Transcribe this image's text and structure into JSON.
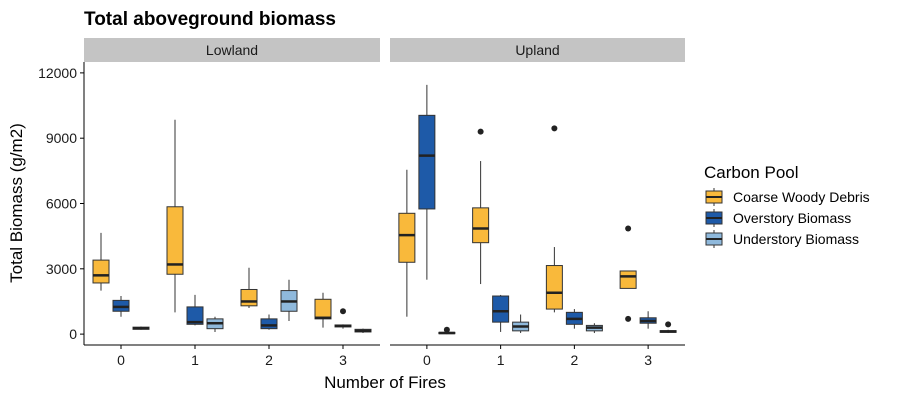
{
  "chart_data": {
    "type": "boxplot",
    "title": "Total aboveground biomass",
    "xlabel": "Number of Fires",
    "ylabel": "Total Biomass (g/m2)",
    "ylim": [
      -500,
      12500
    ],
    "yticks": [
      0,
      3000,
      6000,
      9000,
      12000
    ],
    "ytick_labels": [
      "0",
      "3000",
      "6000",
      "9000",
      "12000"
    ],
    "categories": [
      "0",
      "1",
      "2",
      "3"
    ],
    "grid": false,
    "legend": {
      "title": "Carbon Pool",
      "placement": "right",
      "entries": [
        {
          "name": "Coarse Woody Debris",
          "color": "#f9b93b"
        },
        {
          "name": "Overstory Biomass",
          "color": "#1e5aa8"
        },
        {
          "name": "Understory Biomass",
          "color": "#8fb9dc"
        }
      ]
    },
    "panels": [
      {
        "label": "Lowland",
        "groups": [
          {
            "category": "0",
            "boxes": [
              {
                "series": "Coarse Woody Debris",
                "min": 2000,
                "q1": 2350,
                "median": 2700,
                "q3": 3400,
                "max": 4650,
                "outliers": []
              },
              {
                "series": "Overstory Biomass",
                "min": 800,
                "q1": 1050,
                "median": 1250,
                "q3": 1550,
                "max": 1750,
                "outliers": []
              },
              {
                "series": "Understory Biomass",
                "min": 200,
                "q1": 220,
                "median": 270,
                "q3": 320,
                "max": 350,
                "outliers": []
              }
            ]
          },
          {
            "category": "1",
            "boxes": [
              {
                "series": "Coarse Woody Debris",
                "min": 1000,
                "q1": 2750,
                "median": 3200,
                "q3": 5850,
                "max": 9850,
                "outliers": []
              },
              {
                "series": "Overstory Biomass",
                "min": 400,
                "q1": 450,
                "median": 550,
                "q3": 1250,
                "max": 1800,
                "outliers": []
              },
              {
                "series": "Understory Biomass",
                "min": 100,
                "q1": 250,
                "median": 500,
                "q3": 700,
                "max": 800,
                "outliers": []
              }
            ]
          },
          {
            "category": "2",
            "boxes": [
              {
                "series": "Coarse Woody Debris",
                "min": 1200,
                "q1": 1300,
                "median": 1500,
                "q3": 2050,
                "max": 3050,
                "outliers": []
              },
              {
                "series": "Overstory Biomass",
                "min": 200,
                "q1": 250,
                "median": 400,
                "q3": 700,
                "max": 900,
                "outliers": []
              },
              {
                "series": "Understory Biomass",
                "min": 600,
                "q1": 1050,
                "median": 1500,
                "q3": 2000,
                "max": 2500,
                "outliers": []
              }
            ]
          },
          {
            "category": "3",
            "boxes": [
              {
                "series": "Coarse Woody Debris",
                "min": 300,
                "q1": 700,
                "median": 750,
                "q3": 1600,
                "max": 1900,
                "outliers": []
              },
              {
                "series": "Overstory Biomass",
                "min": 250,
                "q1": 330,
                "median": 380,
                "q3": 420,
                "max": 450,
                "outliers": [
                  1050
                ]
              },
              {
                "series": "Understory Biomass",
                "min": 50,
                "q1": 100,
                "median": 150,
                "q3": 220,
                "max": 250,
                "outliers": []
              }
            ]
          }
        ]
      },
      {
        "label": "Upland",
        "groups": [
          {
            "category": "0",
            "boxes": [
              {
                "series": "Coarse Woody Debris",
                "min": 800,
                "q1": 3300,
                "median": 4550,
                "q3": 5550,
                "max": 7550,
                "outliers": []
              },
              {
                "series": "Overstory Biomass",
                "min": 2500,
                "q1": 5750,
                "median": 8200,
                "q3": 10050,
                "max": 11450,
                "outliers": []
              },
              {
                "series": "Understory Biomass",
                "min": 0,
                "q1": 20,
                "median": 50,
                "q3": 80,
                "max": 100,
                "outliers": [
                  200
                ]
              }
            ]
          },
          {
            "category": "1",
            "boxes": [
              {
                "series": "Coarse Woody Debris",
                "min": 2300,
                "q1": 4200,
                "median": 4850,
                "q3": 5800,
                "max": 7950,
                "outliers": [
                  9300
                ]
              },
              {
                "series": "Overstory Biomass",
                "min": 100,
                "q1": 550,
                "median": 1050,
                "q3": 1750,
                "max": 1800,
                "outliers": []
              },
              {
                "series": "Understory Biomass",
                "min": 50,
                "q1": 150,
                "median": 350,
                "q3": 550,
                "max": 900,
                "outliers": []
              }
            ]
          },
          {
            "category": "2",
            "boxes": [
              {
                "series": "Coarse Woody Debris",
                "min": 1000,
                "q1": 1150,
                "median": 1900,
                "q3": 3150,
                "max": 4000,
                "outliers": [
                  9450
                ]
              },
              {
                "series": "Overstory Biomass",
                "min": 250,
                "q1": 450,
                "median": 700,
                "q3": 1000,
                "max": 1150,
                "outliers": []
              },
              {
                "series": "Understory Biomass",
                "min": 50,
                "q1": 150,
                "median": 300,
                "q3": 400,
                "max": 500,
                "outliers": []
              }
            ]
          },
          {
            "category": "3",
            "boxes": [
              {
                "series": "Coarse Woody Debris",
                "min": 2100,
                "q1": 2100,
                "median": 2650,
                "q3": 2900,
                "max": 2900,
                "outliers": [
                  4850,
                  700
                ]
              },
              {
                "series": "Overstory Biomass",
                "min": 250,
                "q1": 500,
                "median": 600,
                "q3": 750,
                "max": 1050,
                "outliers": []
              },
              {
                "series": "Understory Biomass",
                "min": 50,
                "q1": 80,
                "median": 120,
                "q3": 160,
                "max": 200,
                "outliers": [
                  450
                ]
              }
            ]
          }
        ]
      }
    ]
  }
}
